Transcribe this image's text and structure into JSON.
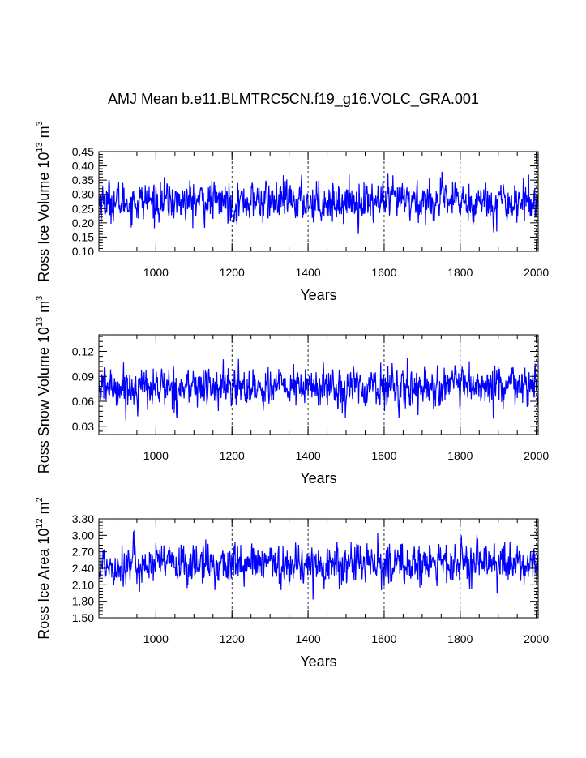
{
  "title": "AMJ Mean b.e11.BLMTRC5CN.f19_g16.VOLC_GRA.001",
  "chart_data": [
    {
      "type": "line",
      "title": "AMJ Mean b.e11.BLMTRC5CN.f19_g16.VOLC_GRA.001",
      "xlabel": "Years",
      "ylabel": "Ross Ice Volume 10",
      "ylabel_exp": "13",
      "ylabel_unit": " m",
      "ylabel_unit_exp": "3",
      "xlim": [
        850,
        2005
      ],
      "ylim": [
        0.1,
        0.45
      ],
      "xticks": [
        1000,
        1200,
        1400,
        1600,
        1800,
        2000
      ],
      "xtick_labels": [
        "1000",
        "1200",
        "1400",
        "1600",
        "1800",
        "2000"
      ],
      "yticks": [
        0.1,
        0.15,
        0.2,
        0.25,
        0.3,
        0.35,
        0.4,
        0.45
      ],
      "ytick_labels": [
        "0.10",
        "0.15",
        "0.20",
        "0.25",
        "0.30",
        "0.35",
        "0.40",
        "0.45"
      ],
      "vlines": [
        1000,
        1200,
        1400,
        1600,
        1800,
        2000
      ],
      "series": [
        {
          "name": "Ross Ice Volume",
          "color": "#0000ff",
          "x_start": 850,
          "x_end": 2005,
          "mean": 0.275,
          "std": 0.035
        }
      ]
    },
    {
      "type": "line",
      "xlabel": "Years",
      "ylabel": "Ross Snow Volume 10",
      "ylabel_exp": "13",
      "ylabel_unit": " m",
      "ylabel_unit_exp": "3",
      "xlim": [
        850,
        2005
      ],
      "ylim": [
        0.02,
        0.14
      ],
      "xticks": [
        1000,
        1200,
        1400,
        1600,
        1800,
        2000
      ],
      "xtick_labels": [
        "1000",
        "1200",
        "1400",
        "1600",
        "1800",
        "2000"
      ],
      "yticks": [
        0.03,
        0.06,
        0.09,
        0.12
      ],
      "ytick_labels": [
        "0.03",
        "0.06",
        "0.09",
        "0.12"
      ],
      "vlines": [
        1000,
        1200,
        1400,
        1600,
        1800,
        2000
      ],
      "series": [
        {
          "name": "Ross Snow Volume",
          "color": "#0000ff",
          "x_start": 850,
          "x_end": 2005,
          "mean": 0.077,
          "std": 0.012
        }
      ]
    },
    {
      "type": "line",
      "xlabel": "Years",
      "ylabel": "Ross Ice Area 10",
      "ylabel_exp": "12",
      "ylabel_unit": " m",
      "ylabel_unit_exp": "2",
      "xlim": [
        850,
        2005
      ],
      "ylim": [
        1.5,
        3.3
      ],
      "xticks": [
        1000,
        1200,
        1400,
        1600,
        1800,
        2000
      ],
      "xtick_labels": [
        "1000",
        "1200",
        "1400",
        "1600",
        "1800",
        "2000"
      ],
      "yticks": [
        1.5,
        1.8,
        2.1,
        2.4,
        2.7,
        3.0,
        3.3
      ],
      "ytick_labels": [
        "1.50",
        "1.80",
        "2.10",
        "2.40",
        "2.70",
        "3.00",
        "3.30"
      ],
      "vlines": [
        1000,
        1200,
        1400,
        1600,
        1800,
        2000
      ],
      "series": [
        {
          "name": "Ross Ice Area",
          "color": "#0000ff",
          "x_start": 850,
          "x_end": 2005,
          "mean": 2.47,
          "std": 0.19
        }
      ]
    }
  ]
}
